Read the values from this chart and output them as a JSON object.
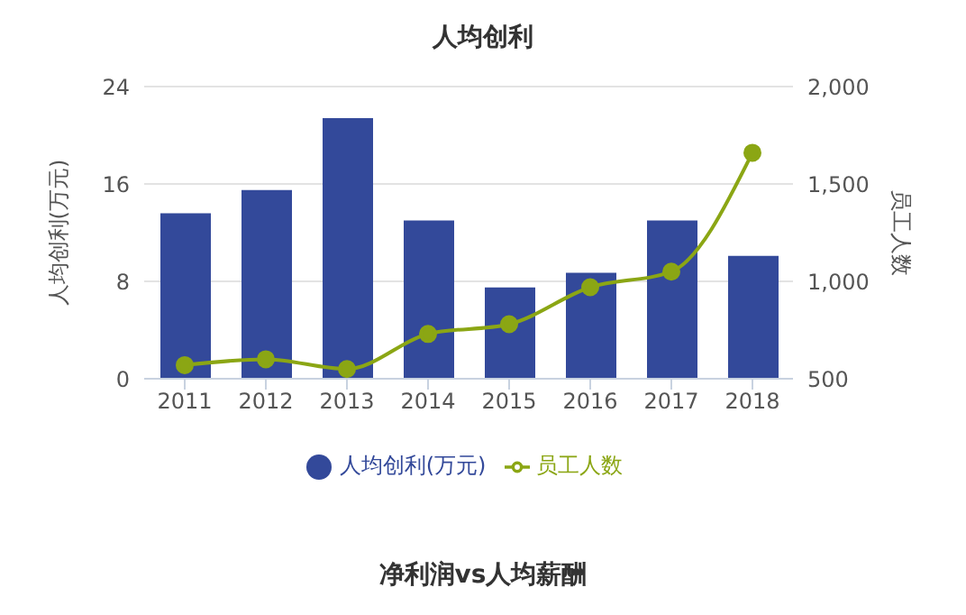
{
  "chart_data": {
    "type": "bar",
    "title": "人均创利",
    "ylabel": "人均创利(万元)",
    "y2label": "员工人数",
    "categories": [
      "2011",
      "2012",
      "2013",
      "2014",
      "2015",
      "2016",
      "2017",
      "2018"
    ],
    "series": [
      {
        "name": "人均创利(万元)",
        "color": "#33499a",
        "values": [
          13.6,
          15.5,
          21.4,
          13.0,
          7.5,
          8.7,
          13.0,
          10.1
        ]
      },
      {
        "name": "员工人数",
        "type": "line",
        "axis": "y2",
        "color": "#8ba614",
        "values": [
          570,
          600,
          550,
          730,
          780,
          970,
          1050,
          1660
        ]
      }
    ],
    "ylim": [
      0,
      24
    ],
    "yticks": [
      0,
      8,
      16,
      24
    ],
    "y2lim": [
      500,
      2000
    ],
    "y2ticks": [
      {
        "value": 500,
        "label": "500"
      },
      {
        "value": 1000,
        "label": "1,000"
      },
      {
        "value": 1500,
        "label": "1,500"
      },
      {
        "value": 2000,
        "label": "2,000"
      }
    ],
    "grid": "y",
    "legend": "bottom",
    "marker": "circle",
    "line_style": "solid",
    "annotations": [
      "净利润vs人均薪酬"
    ]
  }
}
